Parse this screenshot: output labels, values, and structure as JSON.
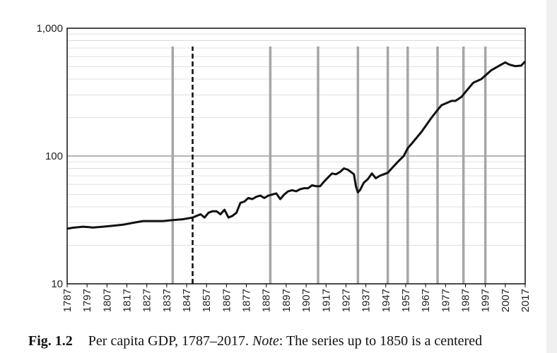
{
  "chart_data": {
    "type": "line",
    "yscale": "log",
    "ylim": [
      10,
      1000
    ],
    "xlim": [
      1787,
      2017
    ],
    "yticks": [
      {
        "value": 10,
        "label": "10"
      },
      {
        "value": 100,
        "label": "100"
      },
      {
        "value": 1000,
        "label": "1,000"
      }
    ],
    "xticks": [
      1787,
      1797,
      1807,
      1817,
      1827,
      1837,
      1847,
      1857,
      1867,
      1877,
      1887,
      1897,
      1907,
      1917,
      1927,
      1937,
      1947,
      1957,
      1967,
      1977,
      1987,
      1997,
      2007,
      2017
    ],
    "grid": {
      "major_y": true,
      "minor_y": true
    },
    "vertical_markers": [
      1840,
      1889,
      1913,
      1933,
      1948,
      1958,
      1973,
      1986,
      1997
    ],
    "dashed_marker": 1850,
    "series": [
      {
        "x": [
          1787,
          1790,
          1795,
          1800,
          1805,
          1810,
          1815,
          1820,
          1825,
          1830,
          1835,
          1840,
          1845,
          1850,
          1852,
          1854,
          1856,
          1858,
          1860,
          1862,
          1864,
          1866,
          1868,
          1870,
          1872,
          1874,
          1876,
          1878,
          1880,
          1882,
          1884,
          1886,
          1888,
          1890,
          1892,
          1894,
          1896,
          1898,
          1900,
          1902,
          1904,
          1906,
          1908,
          1910,
          1912,
          1914,
          1916,
          1918,
          1920,
          1922,
          1924,
          1926,
          1928,
          1929,
          1930,
          1931,
          1932,
          1933,
          1934,
          1936,
          1938,
          1940,
          1942,
          1944,
          1946,
          1948,
          1950,
          1953,
          1956,
          1958,
          1960,
          1965,
          1970,
          1974,
          1975,
          1980,
          1982,
          1985,
          1990,
          1991,
          1995,
          2000,
          2005,
          2007,
          2009,
          2012,
          2015,
          2017
        ],
        "y": [
          27,
          27.5,
          28,
          27.6,
          28,
          28.5,
          29,
          30,
          31,
          31,
          31,
          31.5,
          32,
          33,
          34,
          35,
          33,
          36,
          37,
          37,
          35,
          38,
          33,
          34,
          36,
          43,
          44,
          47,
          46,
          48,
          49,
          47,
          49,
          50,
          51,
          46,
          50,
          53,
          54,
          53,
          55,
          56,
          56,
          59,
          58,
          58,
          63,
          68,
          73,
          72,
          75,
          80,
          78,
          76,
          74,
          72,
          58,
          52,
          54,
          62,
          66,
          73,
          67,
          70,
          72,
          74,
          80,
          90,
          100,
          115,
          125,
          155,
          200,
          240,
          250,
          270,
          270,
          290,
          360,
          375,
          400,
          470,
          520,
          540,
          520,
          505,
          510,
          550
        ]
      }
    ]
  },
  "caption": {
    "fig_label": "Fig. 1.2",
    "text_before_note": "Per capita GDP, 1787–2017. ",
    "note_label": "Note",
    "text_after_note": ": The series up to 1850 is a centered"
  }
}
